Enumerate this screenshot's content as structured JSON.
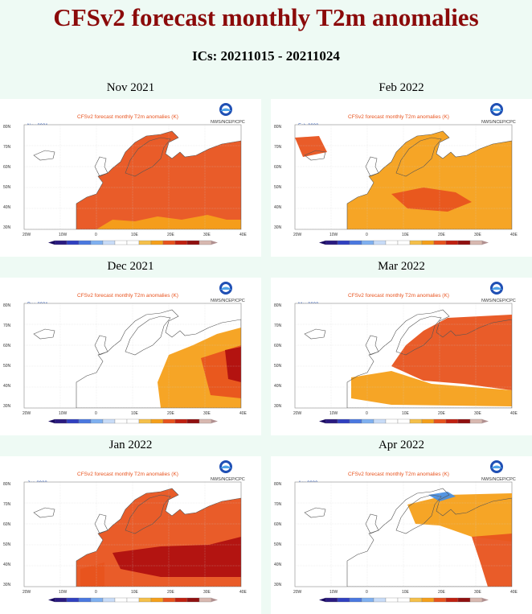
{
  "page": {
    "title": "CFSv2 forecast monthly T2m anomalies",
    "subtitle": "ICs: 20211015 - 20211024"
  },
  "panel_header": "CFSv2 forecast monthly T2m anomalies (K)",
  "panel_credit": "NWS/NCEP/CPC",
  "lat_labels": [
    "80N",
    "70N",
    "60N",
    "50N",
    "40N",
    "30N"
  ],
  "lon_labels": [
    "20W",
    "10W",
    "0",
    "10E",
    "20E",
    "30E",
    "40E"
  ],
  "panels": [
    {
      "label": "Nov 2021",
      "tag": "Nov 2021",
      "level": "warm"
    },
    {
      "label": "Feb 2022",
      "tag": "Feb 2022",
      "level": "mild"
    },
    {
      "label": "Dec 2021",
      "tag": "Dec 2021",
      "level": "east"
    },
    {
      "label": "Mar 2022",
      "tag": "Mar 2022",
      "level": "northeast"
    },
    {
      "label": "Jan 2022",
      "tag": "Jan 2022",
      "level": "hot"
    },
    {
      "label": "Apr 2022",
      "tag": "Apr 2022",
      "level": "patchy"
    }
  ],
  "colors": {
    "title": "#8b0a0a",
    "orange": "#f5a01a",
    "red_orange": "#e8531e",
    "dark_red": "#b01010",
    "land_line": "#555555",
    "cool": "#4a8fe0"
  }
}
